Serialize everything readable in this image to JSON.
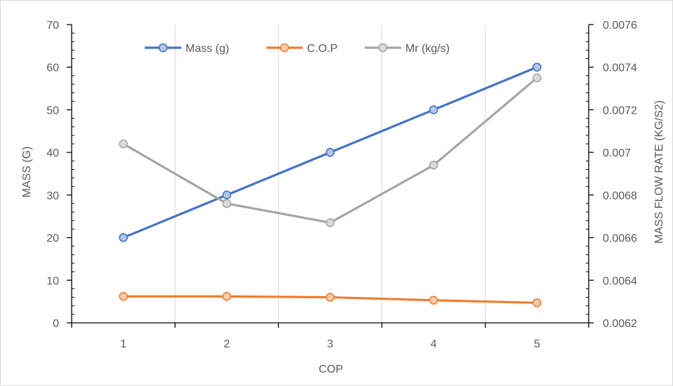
{
  "chart_data": {
    "type": "line",
    "title": "",
    "xlabel": "COP",
    "ylabel": "MASS (G)",
    "y2label": "MASS FLOW RATE (KG/S2)",
    "categories": [
      "1",
      "2",
      "3",
      "4",
      "5"
    ],
    "ylim": [
      0,
      70
    ],
    "yticks": [
      "0",
      "10",
      "20",
      "30",
      "40",
      "50",
      "60",
      "70"
    ],
    "y2lim": [
      0.0062,
      0.0076
    ],
    "y2ticks": [
      "0.0062",
      "0.0064",
      "0.0066",
      "0.0068",
      "0.007",
      "0.0072",
      "0.0074",
      "0.0076"
    ],
    "grid": "vertical",
    "legend_position": "top",
    "series": [
      {
        "name": "Mass (g)",
        "axis": "left",
        "color": "#4472c4",
        "marker_fill": "#b4c7e7",
        "values": [
          20,
          30,
          40,
          50,
          60
        ]
      },
      {
        "name": "C.O.P",
        "axis": "left",
        "color": "#ed7d31",
        "marker_fill": "#f8cbad",
        "values": [
          6.2,
          6.2,
          6.0,
          5.3,
          4.7
        ]
      },
      {
        "name": "Mr (kg/s)",
        "axis": "right",
        "color": "#a5a5a5",
        "marker_fill": "#dbdbdb",
        "values": [
          0.00704,
          0.00676,
          0.00667,
          0.00694,
          0.00735
        ]
      }
    ]
  }
}
